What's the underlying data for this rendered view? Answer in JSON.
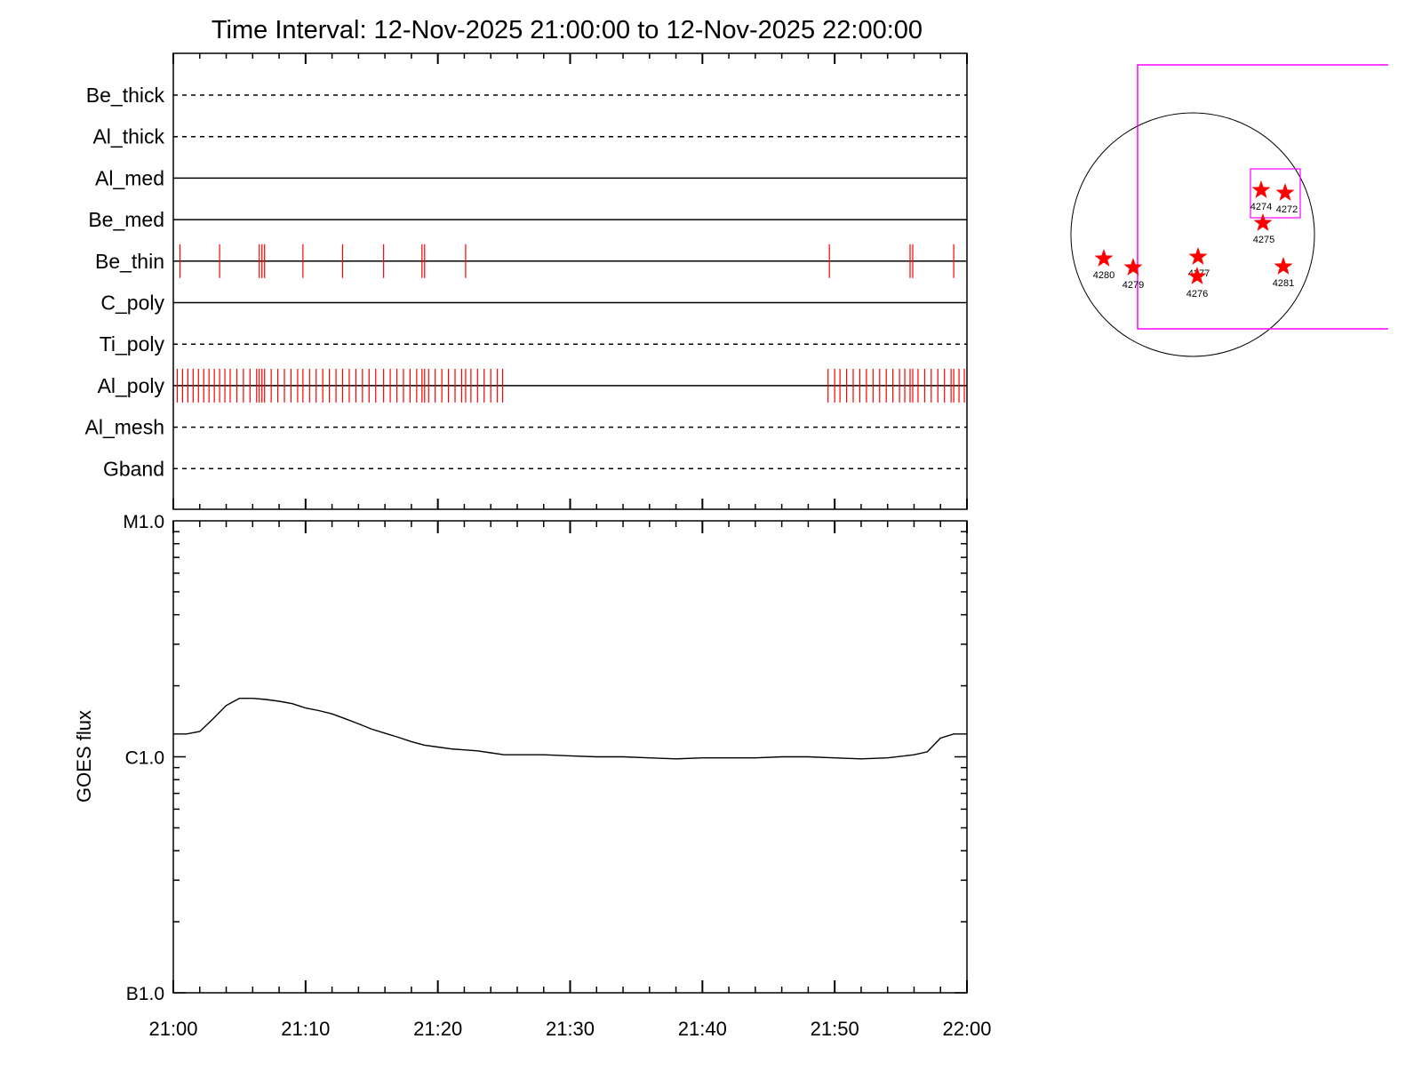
{
  "title": "Time Interval: 12-Nov-2025 21:00:00 to 12-Nov-2025 22:00:00",
  "colors": {
    "axis": "#000000",
    "exposure": "#ff0000",
    "fov": "#ff00ff",
    "star": "#ff0000"
  },
  "chart_data": [
    {
      "type": "timeline",
      "name": "filter-timeline",
      "x_range_minutes": [
        0,
        60
      ],
      "filters": [
        {
          "label": "Be_thick",
          "style": "dashed",
          "exposures": []
        },
        {
          "label": "Al_thick",
          "style": "dashed",
          "exposures": []
        },
        {
          "label": "Al_med",
          "style": "solid",
          "exposures": []
        },
        {
          "label": "Be_med",
          "style": "solid",
          "exposures": []
        },
        {
          "label": "Be_thin",
          "style": "solid",
          "exposures": [
            0.5,
            3.5,
            6.5,
            6.7,
            6.9,
            9.8,
            12.8,
            15.9,
            18.8,
            19.0,
            22.1,
            49.6,
            55.7,
            55.9,
            59.0
          ]
        },
        {
          "label": "C_poly",
          "style": "solid",
          "exposures": []
        },
        {
          "label": "Ti_poly",
          "style": "dashed",
          "exposures": []
        },
        {
          "label": "Al_poly",
          "style": "solid",
          "exposures": [
            0.3,
            0.7,
            1.1,
            1.5,
            1.9,
            2.3,
            2.7,
            3.1,
            3.5,
            3.9,
            4.3,
            4.8,
            5.3,
            5.8,
            6.3,
            6.5,
            6.7,
            6.9,
            7.4,
            7.9,
            8.4,
            8.9,
            9.4,
            9.8,
            10.3,
            10.8,
            11.3,
            11.8,
            12.3,
            12.8,
            13.3,
            13.8,
            14.3,
            14.8,
            15.3,
            15.9,
            16.4,
            16.9,
            17.4,
            17.9,
            18.4,
            18.8,
            19.0,
            19.3,
            19.8,
            20.3,
            20.8,
            21.3,
            21.8,
            22.1,
            22.5,
            23.0,
            23.5,
            24.0,
            24.5,
            24.9,
            49.5,
            50.0,
            50.4,
            50.9,
            51.4,
            51.9,
            52.4,
            52.9,
            53.4,
            53.9,
            54.4,
            54.9,
            55.3,
            55.7,
            55.9,
            56.3,
            56.8,
            57.3,
            57.8,
            58.3,
            58.8,
            59.0,
            59.4,
            59.8
          ]
        },
        {
          "label": "Al_mesh",
          "style": "dashed",
          "exposures": []
        },
        {
          "label": "Gband",
          "style": "dashed",
          "exposures": []
        }
      ]
    },
    {
      "type": "line",
      "name": "goes-flux",
      "ylabel": "GOES flux",
      "yscale": "log",
      "ylim": [
        1e-07,
        1e-05
      ],
      "ytick_labels": [
        {
          "value": 1e-05,
          "label": "M1.0"
        },
        {
          "value": 1e-06,
          "label": "C1.0"
        },
        {
          "value": 1e-07,
          "label": "B1.0"
        }
      ],
      "x_range_minutes": [
        0,
        60
      ],
      "xtick_labels": [
        {
          "value": 0,
          "label": "21:00"
        },
        {
          "value": 10,
          "label": "21:10"
        },
        {
          "value": 20,
          "label": "21:20"
        },
        {
          "value": 30,
          "label": "21:30"
        },
        {
          "value": 40,
          "label": "21:40"
        },
        {
          "value": 50,
          "label": "21:50"
        },
        {
          "value": 60,
          "label": "22:00"
        }
      ],
      "x": [
        0,
        1,
        2,
        3,
        4,
        5,
        6,
        7,
        8,
        9,
        10,
        11,
        12,
        13,
        14,
        15,
        16,
        17,
        18,
        19,
        20,
        21,
        22,
        23,
        24,
        25,
        26,
        28,
        30,
        32,
        34,
        36,
        38,
        40,
        42,
        44,
        46,
        48,
        50,
        52,
        54,
        56,
        57,
        58,
        59,
        60
      ],
      "y": [
        1.25e-06,
        1.25e-06,
        1.28e-06,
        1.45e-06,
        1.65e-06,
        1.77e-06,
        1.77e-06,
        1.75e-06,
        1.72e-06,
        1.68e-06,
        1.61e-06,
        1.57e-06,
        1.52e-06,
        1.45e-06,
        1.38e-06,
        1.31e-06,
        1.26e-06,
        1.21e-06,
        1.16e-06,
        1.12e-06,
        1.1e-06,
        1.08e-06,
        1.07e-06,
        1.06e-06,
        1.04e-06,
        1.02e-06,
        1.02e-06,
        1.02e-06,
        1.01e-06,
        1e-06,
        1e-06,
        9.9e-07,
        9.8e-07,
        9.9e-07,
        9.9e-07,
        9.9e-07,
        1e-06,
        1e-06,
        9.9e-07,
        9.8e-07,
        9.9e-07,
        1.02e-06,
        1.05e-06,
        1.2e-06,
        1.25e-06,
        1.25e-06
      ]
    }
  ],
  "sun_map": {
    "regions": [
      {
        "id": "4274"
      },
      {
        "id": "4272"
      },
      {
        "id": "4275"
      },
      {
        "id": "4277"
      },
      {
        "id": "4276"
      },
      {
        "id": "4280"
      },
      {
        "id": "4279"
      },
      {
        "id": "4281"
      }
    ]
  }
}
